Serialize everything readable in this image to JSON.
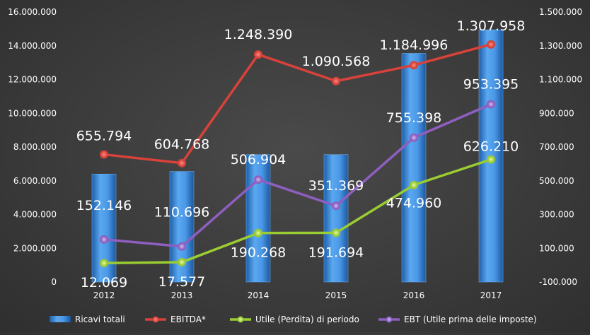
{
  "chart_data": {
    "type": "bar",
    "categories": [
      "2012",
      "2013",
      "2014",
      "2015",
      "2016",
      "2017"
    ],
    "y_left": {
      "range": [
        0,
        16000000
      ],
      "ticks": [
        0,
        2000000,
        4000000,
        6000000,
        8000000,
        10000000,
        12000000,
        14000000,
        16000000
      ],
      "tick_labels": [
        "0",
        "2.000.000",
        "4.000.000",
        "6.000.000",
        "8.000.000",
        "10.000.000",
        "12.000.000",
        "14.000.000",
        "16.000.000"
      ]
    },
    "y_right": {
      "range": [
        -100000,
        1500000
      ],
      "ticks": [
        -100000,
        100000,
        300000,
        500000,
        700000,
        900000,
        1100000,
        1300000,
        1500000
      ],
      "tick_labels": [
        "-100.000",
        "100.000",
        "300.000",
        "500.000",
        "700.000",
        "900.000",
        "1.100.000",
        "1.300.000",
        "1.500.000"
      ]
    },
    "grid": false,
    "legend_position": "bottom",
    "series": [
      {
        "name": "Ricavi totali",
        "kind": "bar",
        "axis": "left",
        "color": "#3d8fe0",
        "values": [
          6400000,
          6550000,
          7550000,
          7550000,
          13550000,
          14950000
        ]
      },
      {
        "name": "EBITDA*",
        "kind": "line",
        "axis": "right",
        "color": "#d9423a",
        "values": [
          655794,
          604768,
          1248390,
          1090568,
          1184996,
          1307958
        ],
        "labels": [
          "655.794",
          "604.768",
          "1.248.390",
          "1.090.568",
          "1.184.996",
          "1.307.958"
        ]
      },
      {
        "name": "Utile (Perdita) di periodo",
        "kind": "line",
        "axis": "right",
        "color": "#9acd32",
        "values": [
          12069,
          17577,
          190268,
          191694,
          474960,
          626210
        ],
        "labels": [
          "12.069",
          "17.577",
          "190.268",
          "191.694",
          "474.960",
          "626.210"
        ]
      },
      {
        "name": "EBT (Utile prima delle imposte)",
        "kind": "line",
        "axis": "right",
        "color": "#8e5fc0",
        "values": [
          152146,
          110696,
          506904,
          351369,
          755398,
          953395
        ],
        "labels": [
          "152.146",
          "110.696",
          "506.904",
          "351.369",
          "755.398",
          "953.395"
        ]
      }
    ]
  }
}
